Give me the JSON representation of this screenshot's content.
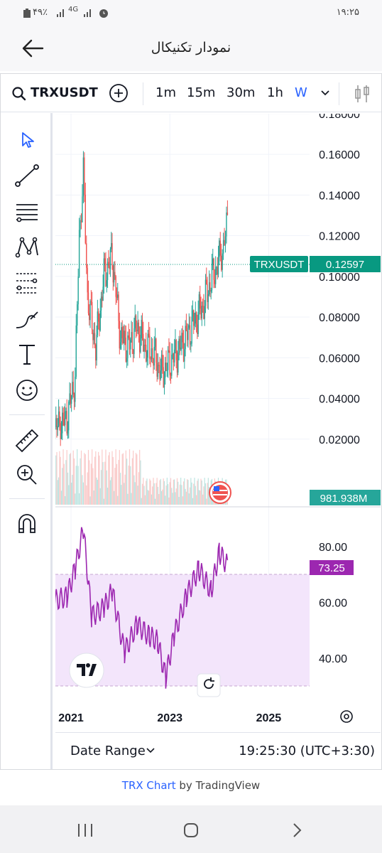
{
  "status_bar": {
    "left": "۴۹٪",
    "net": "4G",
    "time": "۱۹:۲۵"
  },
  "app_bar": {
    "title": "نمودار تکنیکال"
  },
  "toolbar": {
    "symbol": "TRXUSDT",
    "intervals": [
      "1m",
      "15m",
      "30m",
      "1h",
      "W"
    ],
    "active_interval": "W"
  },
  "side_tools": [
    "cursor-icon",
    "trend-line-icon",
    "horizontal-lines-icon",
    "pattern-icon",
    "fib-icon",
    "brush-icon",
    "text-icon",
    "emoji-icon",
    "ruler-icon",
    "zoom-in-icon",
    "magnet-icon"
  ],
  "price_axis": [
    "0.18000",
    "0.16000",
    "0.14000",
    "0.12000",
    "0.10000",
    "0.08000",
    "0.06000",
    "0.04000",
    "0.02000"
  ],
  "last_price": {
    "symbol": "TRXUSDT",
    "value": "0.12597"
  },
  "volume_label": "981.938M",
  "rsi_axis": [
    "80.00",
    "60.00",
    "40.00"
  ],
  "rsi_value": "73.25",
  "time_axis": [
    "2021",
    "2023",
    "2025"
  ],
  "bottom_bar": {
    "date_range": "Date Range",
    "clock": "19:25:30 (UTC+3:30)"
  },
  "credit": {
    "link": "TRX Chart",
    "rest": " by TradingView"
  },
  "colors": {
    "up": "#26a69a",
    "down": "#ef5350",
    "rsi": "#9c27b0",
    "accent": "#2962ff",
    "label": "#089981"
  },
  "chart_data": {
    "type": "line",
    "title": "TRXUSDT",
    "series": [
      {
        "name": "TRXUSDT",
        "x": [
          "2020-08",
          "2020-10",
          "2020-12",
          "2021-02",
          "2021-03",
          "2021-04",
          "2021-05",
          "2021-07",
          "2021-09",
          "2021-11",
          "2022-01",
          "2022-03",
          "2022-05",
          "2022-07",
          "2022-09",
          "2022-11",
          "2023-01",
          "2023-03",
          "2023-05",
          "2023-07",
          "2023-09",
          "2023-11",
          "2024-01",
          "2024-02",
          "2024-03"
        ],
        "values": [
          0.027,
          0.026,
          0.03,
          0.05,
          0.12,
          0.15,
          0.09,
          0.065,
          0.1,
          0.11,
          0.07,
          0.065,
          0.075,
          0.065,
          0.062,
          0.052,
          0.058,
          0.063,
          0.07,
          0.078,
          0.085,
          0.098,
          0.108,
          0.115,
          0.126
        ]
      },
      {
        "name": "RSI",
        "x": [
          "2020-08",
          "2020-12",
          "2021-02",
          "2021-04",
          "2021-06",
          "2021-09",
          "2021-11",
          "2022-02",
          "2022-05",
          "2022-08",
          "2022-10",
          "2022-12",
          "2023-02",
          "2023-05",
          "2023-08",
          "2023-11",
          "2024-01",
          "2024-03"
        ],
        "values": [
          60,
          62,
          72,
          86,
          55,
          58,
          64,
          42,
          52,
          48,
          46,
          33,
          48,
          62,
          72,
          64,
          78,
          73
        ]
      }
    ],
    "ylim": [
      0,
      0.19
    ],
    "rsi_range": [
      30,
      70
    ]
  }
}
